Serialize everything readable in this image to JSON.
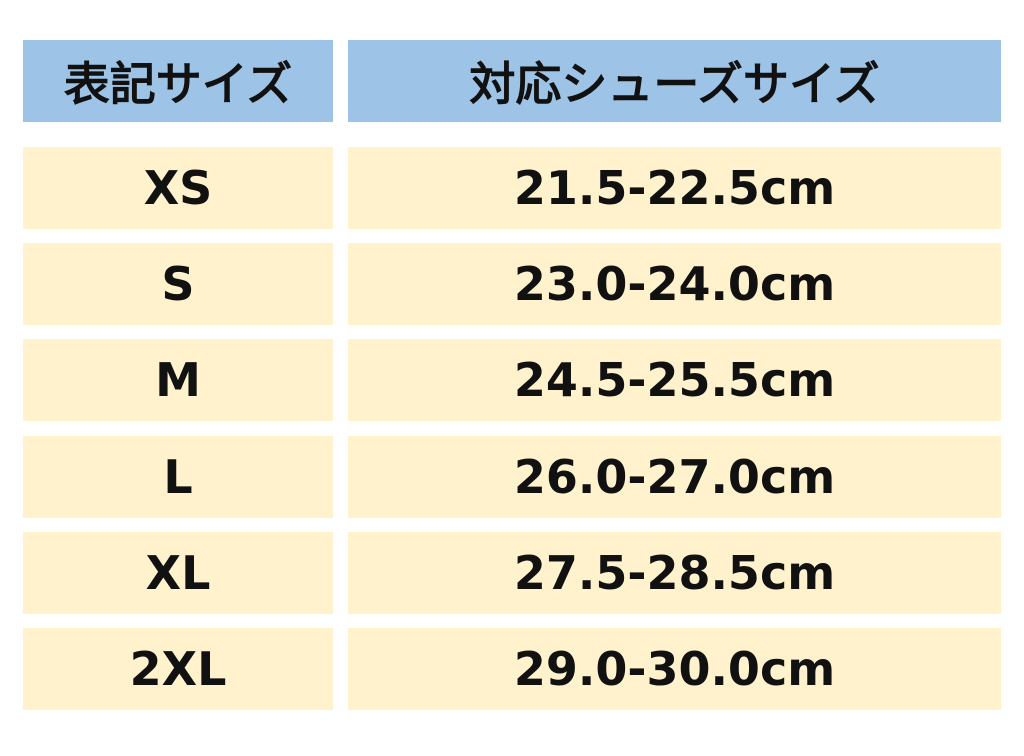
{
  "table": {
    "headers": [
      "表記サイズ",
      "対応シューズサイズ"
    ],
    "rows": [
      [
        "XS",
        "21.5-22.5cm"
      ],
      [
        "S",
        "23.0-24.0cm"
      ],
      [
        "M",
        "24.5-25.5cm"
      ],
      [
        "L",
        "26.0-27.0cm"
      ],
      [
        "XL",
        "27.5-28.5cm"
      ],
      [
        "2XL",
        "29.0-30.0cm"
      ]
    ]
  },
  "colors": {
    "header_bg": "#9dc3e6",
    "row_bg": "#fff2cc"
  }
}
